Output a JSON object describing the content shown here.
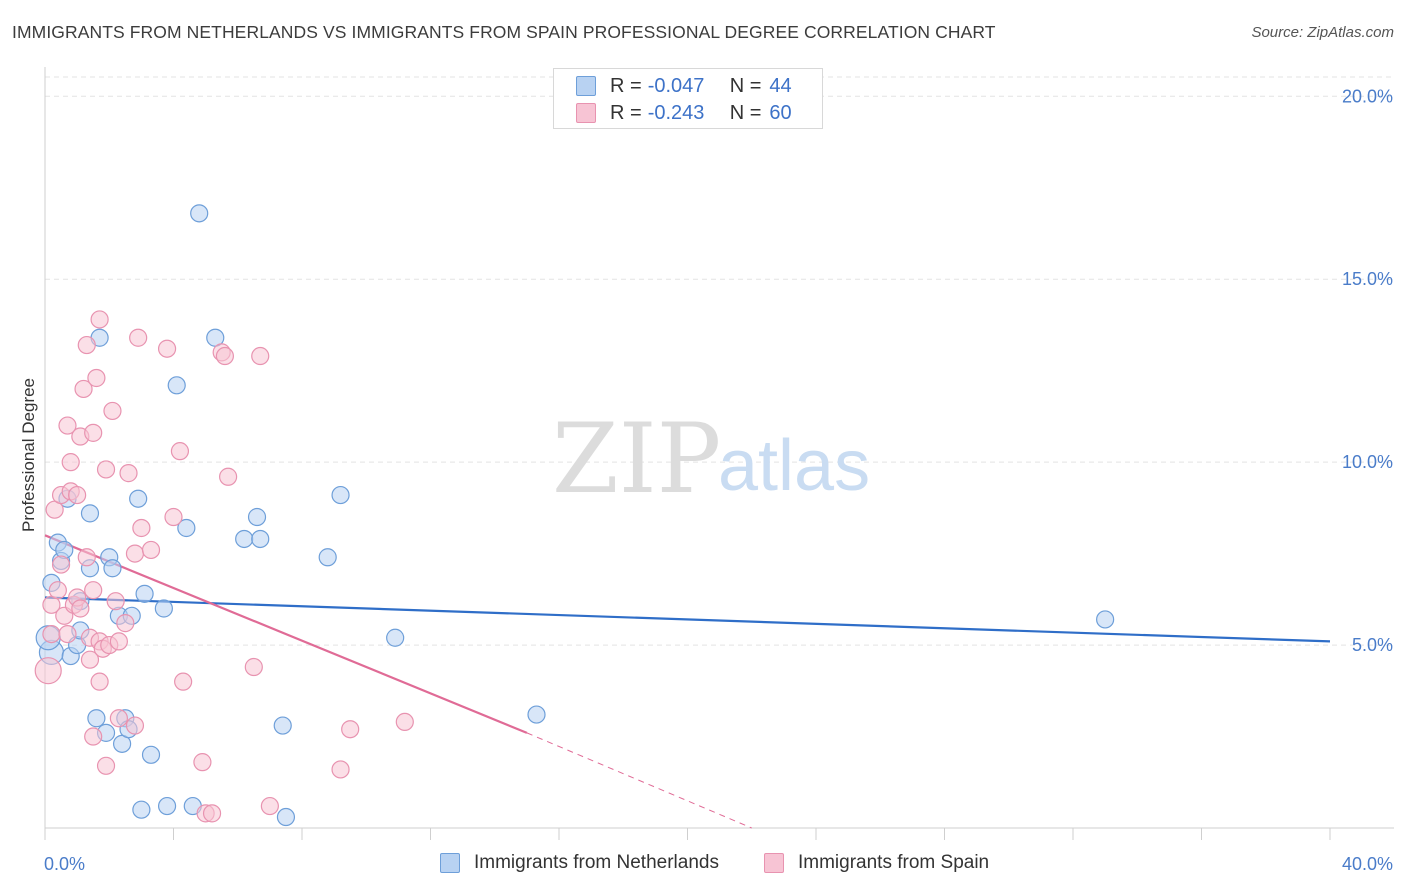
{
  "header": {
    "title": "IMMIGRANTS FROM NETHERLANDS VS IMMIGRANTS FROM SPAIN PROFESSIONAL DEGREE CORRELATION CHART",
    "source": "Source: ZipAtlas.com"
  },
  "watermark": {
    "zip": "ZIP",
    "atlas": "atlas"
  },
  "legend_top": {
    "rows": [
      {
        "r_label": "R =",
        "r_value": "-0.047",
        "n_label": "N =",
        "n_value": "44"
      },
      {
        "r_label": "R =",
        "r_value": "-0.243",
        "n_label": "N =",
        "n_value": "60"
      }
    ]
  },
  "legend_bottom": {
    "netherlands": "Immigrants from Netherlands",
    "spain": "Immigrants from Spain"
  },
  "colors": {
    "netherlands_fill": "#b8d2f2",
    "netherlands_stroke": "#6e9fd9",
    "netherlands_line": "#2f6ec8",
    "spain_fill": "#f7c4d4",
    "spain_stroke": "#e893b0",
    "spain_line": "#e06b96",
    "grid": "#e3e3e3",
    "axis_text": "#4a7cc9"
  },
  "chart_data": {
    "type": "scatter",
    "title": "IMMIGRANTS FROM NETHERLANDS VS IMMIGRANTS FROM SPAIN PROFESSIONAL DEGREE CORRELATION CHART",
    "xlabel": "",
    "ylabel": "Professional Degree",
    "xlim": [
      0,
      40
    ],
    "ylim": [
      0,
      20.8
    ],
    "x_tick_labels": [
      "0.0%",
      "40.0%"
    ],
    "y_ticks": [
      5,
      10,
      15,
      20
    ],
    "y_tick_labels": [
      "5.0%",
      "10.0%",
      "15.0%",
      "20.0%"
    ],
    "grid": true,
    "series": [
      {
        "name": "Immigrants from Netherlands",
        "R": -0.047,
        "N": 44,
        "trend": {
          "x": [
            0,
            40
          ],
          "y": [
            6.3,
            5.1
          ]
        },
        "points": [
          [
            0.2,
            4.8
          ],
          [
            0.2,
            6.7
          ],
          [
            0.4,
            7.8
          ],
          [
            0.5,
            7.3
          ],
          [
            0.6,
            7.6
          ],
          [
            0.7,
            9.0
          ],
          [
            0.8,
            4.7
          ],
          [
            1.0,
            5.0
          ],
          [
            1.1,
            5.4
          ],
          [
            1.1,
            6.2
          ],
          [
            1.4,
            8.6
          ],
          [
            1.4,
            7.1
          ],
          [
            1.6,
            3.0
          ],
          [
            1.7,
            13.4
          ],
          [
            1.9,
            2.6
          ],
          [
            2.0,
            7.4
          ],
          [
            2.1,
            7.1
          ],
          [
            2.3,
            5.8
          ],
          [
            2.4,
            2.3
          ],
          [
            2.5,
            3.0
          ],
          [
            2.6,
            2.7
          ],
          [
            2.7,
            5.8
          ],
          [
            2.9,
            9.0
          ],
          [
            3.0,
            0.5
          ],
          [
            3.1,
            6.4
          ],
          [
            3.3,
            2.0
          ],
          [
            3.7,
            6.0
          ],
          [
            3.8,
            0.6
          ],
          [
            4.1,
            12.1
          ],
          [
            4.4,
            8.2
          ],
          [
            4.6,
            0.6
          ],
          [
            4.8,
            16.8
          ],
          [
            5.3,
            13.4
          ],
          [
            6.2,
            7.9
          ],
          [
            6.6,
            8.5
          ],
          [
            6.7,
            7.9
          ],
          [
            7.4,
            2.8
          ],
          [
            7.5,
            0.3
          ],
          [
            8.8,
            7.4
          ],
          [
            9.2,
            9.1
          ],
          [
            10.9,
            5.2
          ],
          [
            15.3,
            3.1
          ],
          [
            33.0,
            5.7
          ],
          [
            0.1,
            5.2
          ]
        ]
      },
      {
        "name": "Immigrants from Spain",
        "R": -0.243,
        "N": 60,
        "trend": {
          "x": [
            0,
            15
          ],
          "y": [
            8.0,
            2.6
          ]
        },
        "trend_dashed": {
          "x": [
            15,
            22
          ],
          "y": [
            2.6,
            0.0
          ]
        },
        "points": [
          [
            0.1,
            4.3
          ],
          [
            0.2,
            5.3
          ],
          [
            0.2,
            6.1
          ],
          [
            0.3,
            8.7
          ],
          [
            0.4,
            6.5
          ],
          [
            0.5,
            7.2
          ],
          [
            0.5,
            9.1
          ],
          [
            0.6,
            5.8
          ],
          [
            0.7,
            5.3
          ],
          [
            0.7,
            11.0
          ],
          [
            0.8,
            9.2
          ],
          [
            0.8,
            10.0
          ],
          [
            0.9,
            6.1
          ],
          [
            1.0,
            6.3
          ],
          [
            1.0,
            9.1
          ],
          [
            1.1,
            10.7
          ],
          [
            1.1,
            6.0
          ],
          [
            1.2,
            12.0
          ],
          [
            1.3,
            7.4
          ],
          [
            1.3,
            13.2
          ],
          [
            1.4,
            5.2
          ],
          [
            1.4,
            4.6
          ],
          [
            1.5,
            10.8
          ],
          [
            1.5,
            6.5
          ],
          [
            1.5,
            2.5
          ],
          [
            1.6,
            12.3
          ],
          [
            1.7,
            13.9
          ],
          [
            1.7,
            4.0
          ],
          [
            1.7,
            5.1
          ],
          [
            1.8,
            4.9
          ],
          [
            1.9,
            1.7
          ],
          [
            1.9,
            9.8
          ],
          [
            2.0,
            5.0
          ],
          [
            2.1,
            11.4
          ],
          [
            2.2,
            6.2
          ],
          [
            2.3,
            5.1
          ],
          [
            2.3,
            3.0
          ],
          [
            2.5,
            5.6
          ],
          [
            2.6,
            9.7
          ],
          [
            2.8,
            2.8
          ],
          [
            2.8,
            7.5
          ],
          [
            2.9,
            13.4
          ],
          [
            3.0,
            8.2
          ],
          [
            3.3,
            7.6
          ],
          [
            3.8,
            13.1
          ],
          [
            4.0,
            8.5
          ],
          [
            4.2,
            10.3
          ],
          [
            4.3,
            4.0
          ],
          [
            4.9,
            1.8
          ],
          [
            5.0,
            0.4
          ],
          [
            5.2,
            0.4
          ],
          [
            5.5,
            13.0
          ],
          [
            5.6,
            12.9
          ],
          [
            5.7,
            9.6
          ],
          [
            6.5,
            4.4
          ],
          [
            6.7,
            12.9
          ],
          [
            7.0,
            0.6
          ],
          [
            9.2,
            1.6
          ],
          [
            9.5,
            2.7
          ],
          [
            11.2,
            2.9
          ]
        ]
      }
    ]
  }
}
